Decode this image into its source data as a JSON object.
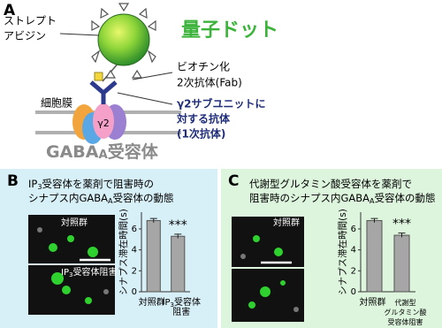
{
  "panel_a": {
    "label": "A",
    "quantum_dot": "量子ドット",
    "streptavidin": [
      "ストレプト",
      "アビジン"
    ],
    "secondary_antibody": [
      "ビオチン化",
      "2次抗体(Fab)"
    ],
    "primary_antibody": [
      "γ2サブユニットに",
      "対する抗体",
      "(1次抗体)"
    ],
    "membrane": "細胞膜",
    "subunit": "γ2",
    "receptor": [
      "GABA",
      "A",
      "受容体"
    ]
  },
  "panel_b": {
    "label": "B",
    "title": [
      [
        "IP",
        "3",
        "受容体を薬剤で阻害時の"
      ],
      [
        "シナプス内GABA",
        "A",
        "受容体の動態"
      ]
    ],
    "image_labels": [
      [
        "対照群"
      ],
      [
        "IP",
        "3",
        "受容体阻害"
      ]
    ]
  },
  "panel_c": {
    "label": "C",
    "title": [
      [
        "代謝型グルタミン酸受容体を薬剤で"
      ],
      [
        "阻害時のシナプス内GABA",
        "A",
        "受容体の動態"
      ]
    ],
    "image_labels": [
      [
        "対照群"
      ]
    ]
  },
  "chart_data": [
    {
      "type": "bar",
      "y_label": "シナプス滞在時間(s)",
      "categories": [
        [
          [
            "対照群"
          ]
        ],
        [
          [
            "IP",
            "3",
            "受容体"
          ],
          [
            "阻害"
          ]
        ]
      ],
      "values": [
        6.8,
        5.3
      ],
      "errors": [
        0.2,
        0.2
      ],
      "color": "#a6a6a6",
      "ylim": [
        0,
        7.6
      ],
      "yticks": [
        0,
        2,
        4,
        6
      ],
      "significance": "***"
    },
    {
      "type": "bar",
      "y_label": "シナプス滞在時間(s)",
      "categories": [
        [
          [
            "対照群"
          ]
        ],
        [
          [
            "代謝型"
          ],
          [
            "グルタミン酸"
          ],
          [
            "受容体阻害"
          ]
        ]
      ],
      "values": [
        6.8,
        5.4
      ],
      "errors": [
        0.2,
        0.2
      ],
      "color": "#a6a6a6",
      "ylim": [
        0,
        7.6
      ],
      "yticks": [
        0,
        2,
        4,
        6
      ],
      "significance": "***"
    }
  ]
}
